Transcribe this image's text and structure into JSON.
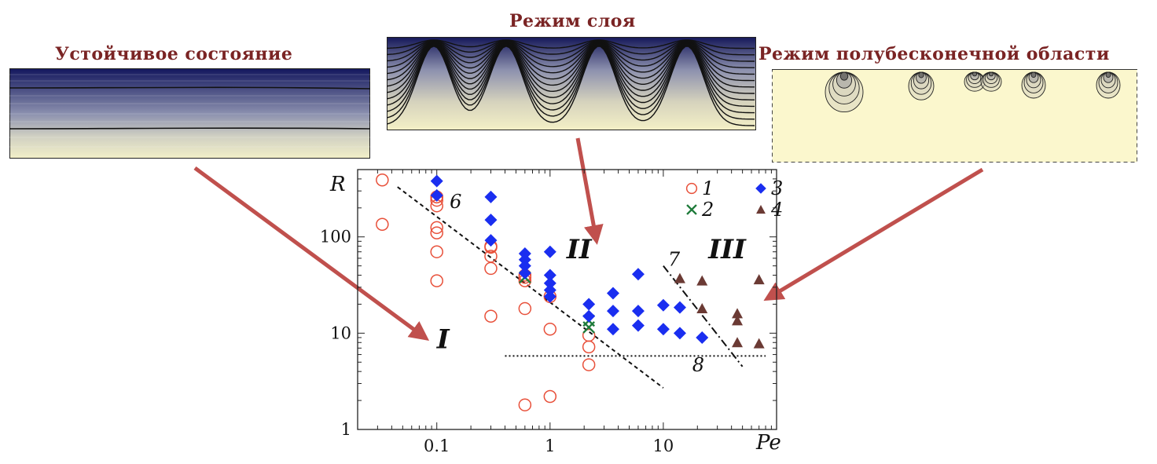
{
  "panels": {
    "stable": {
      "title": "Устойчивое состояние"
    },
    "layer": {
      "title": "Режим слоя"
    },
    "semi": {
      "title": "Режим полубесконечной области"
    }
  },
  "colors": {
    "title": "#7a2424",
    "arrow": "#c0504d",
    "gradient_top": "#14185e",
    "gradient_bottom": "#f2efc8",
    "semi_bg": "#fbf7cd",
    "series1": "#e8503a",
    "series2": "#1e7a3a",
    "series3": "#1a2ef0",
    "series4": "#6b3a34"
  },
  "chart_data": {
    "type": "scatter",
    "xlabel": "Pe",
    "ylabel": "R",
    "x_scale": "log",
    "y_scale": "log",
    "xlim": [
      0.02,
      100
    ],
    "ylim": [
      1,
      500
    ],
    "x_ticks": [
      0.1,
      1,
      10
    ],
    "x_tick_labels": [
      "0.1",
      "1",
      "10"
    ],
    "y_ticks": [
      1,
      10,
      100
    ],
    "y_tick_labels": [
      "1",
      "10",
      "100"
    ],
    "region_labels": [
      {
        "text": "I",
        "x": 0.1,
        "y": 7
      },
      {
        "text": "II",
        "x": 1.4,
        "y": 60
      },
      {
        "text": "III",
        "x": 25,
        "y": 60
      }
    ],
    "lines": [
      {
        "label": "6",
        "style": "dashed",
        "x": [
          0.045,
          10
        ],
        "y": [
          330,
          2.7
        ],
        "label_x": 0.13,
        "label_y": 200
      },
      {
        "label": "7",
        "style": "dashdot",
        "x": [
          10,
          50
        ],
        "y": [
          50,
          4.5
        ],
        "label_x": 11,
        "label_y": 50
      },
      {
        "label": "8",
        "style": "dotted",
        "x": [
          0.4,
          80
        ],
        "y": [
          5.8,
          5.8
        ],
        "label_x": 18,
        "label_y": 4
      }
    ],
    "legend_position": "top-right",
    "series": [
      {
        "name": "1",
        "marker": "open-circle",
        "x": [
          0.033,
          0.033,
          0.1,
          0.1,
          0.1,
          0.1,
          0.1,
          0.1,
          0.1,
          0.1,
          0.3,
          0.3,
          0.3,
          0.3,
          0.3,
          0.6,
          0.6,
          0.6,
          0.6,
          0.6,
          1,
          1,
          1,
          2.2,
          2.2,
          2.2
        ],
        "y": [
          390,
          135,
          260,
          240,
          210,
          125,
          110,
          70,
          35,
          260,
          80,
          63,
          47,
          15,
          78,
          38,
          35,
          18,
          1.8,
          40,
          24,
          11,
          2.2,
          9.5,
          7.2,
          4.7
        ]
      },
      {
        "name": "2",
        "marker": "cross",
        "x": [
          0.6,
          2.2,
          2.2
        ],
        "y": [
          38,
          13.5,
          11.5
        ]
      },
      {
        "name": "3",
        "marker": "diamond",
        "x": [
          0.1,
          0.1,
          0.3,
          0.3,
          0.3,
          0.6,
          0.6,
          0.6,
          0.6,
          1,
          1,
          1,
          1,
          1,
          2.2,
          2.2,
          3.6,
          3.6,
          3.6,
          6,
          6,
          6,
          10,
          10,
          14,
          14,
          22
        ],
        "y": [
          380,
          270,
          260,
          150,
          92,
          67,
          58,
          50,
          42,
          70,
          40,
          33,
          28,
          24,
          20,
          15,
          26,
          17,
          11,
          41,
          17,
          12,
          19.5,
          11,
          18.5,
          10,
          9
        ]
      },
      {
        "name": "4",
        "marker": "triangle",
        "x": [
          14,
          22,
          22,
          45,
          45,
          45,
          70,
          70
        ],
        "y": [
          37,
          35,
          18,
          16,
          13.5,
          8,
          36,
          7.8
        ]
      }
    ]
  }
}
